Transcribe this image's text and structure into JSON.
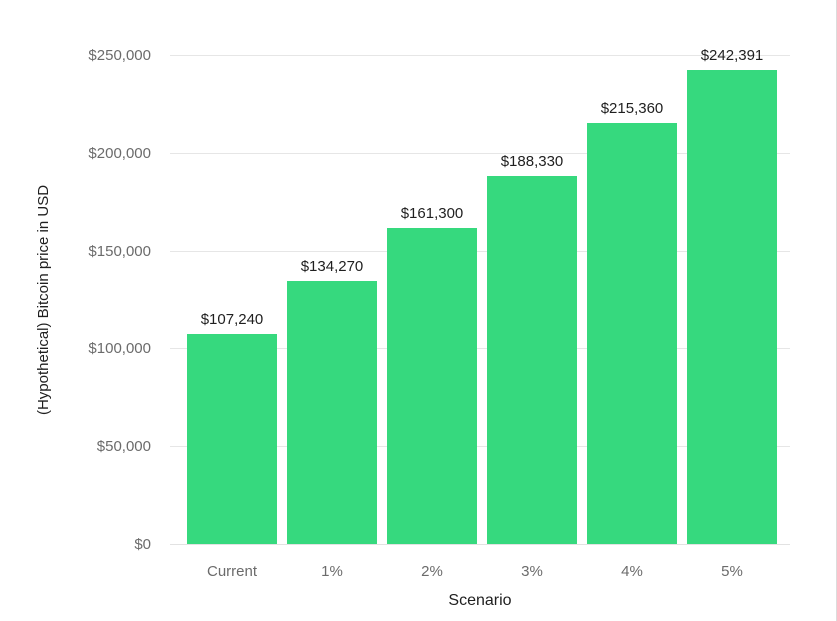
{
  "chart_data": {
    "type": "bar",
    "title": "",
    "categories": [
      "Current",
      "1%",
      "2%",
      "3%",
      "4%",
      "5%"
    ],
    "values": [
      107240,
      134270,
      161300,
      188330,
      215360,
      242391
    ],
    "value_labels": [
      "$107,240",
      "$134,270",
      "$161,300",
      "$188,330",
      "$215,360",
      "$242,391"
    ],
    "xlabel": "Scenario",
    "ylabel": "(Hypothetical) Bitcoin price in USD",
    "ylim": [
      0,
      250000
    ],
    "yticks": [
      0,
      50000,
      100000,
      150000,
      200000,
      250000
    ],
    "ytick_labels": [
      "$0",
      "$50,000",
      "$100,000",
      "$150,000",
      "$200,000",
      "$250,000"
    ],
    "grid": true,
    "legend": false,
    "colors": {
      "bar": "#36d97e",
      "gridline": "#e6e6e6",
      "baseline": "#e2e2e2",
      "tick_label": "#6b6b6b",
      "value_label": "#1f1f1f",
      "axis_title": "#1f1f1f",
      "background": "#ffffff",
      "right_border": "#dcdcdc"
    }
  }
}
